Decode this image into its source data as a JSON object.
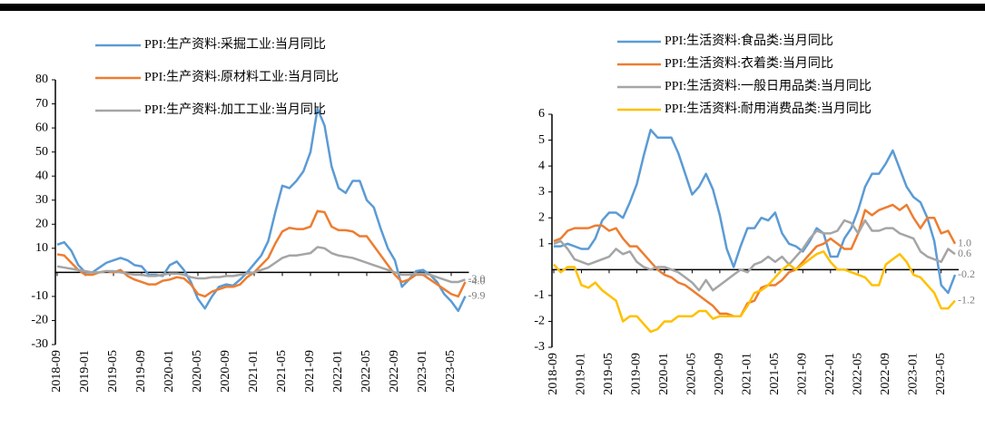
{
  "chart_data": [
    {
      "type": "line",
      "categories": [
        "2018-09",
        null,
        null,
        null,
        "2019-01",
        null,
        null,
        null,
        "2019-05",
        null,
        null,
        null,
        "2019-09",
        null,
        null,
        null,
        "2020-01",
        null,
        null,
        null,
        "2020-05",
        null,
        null,
        null,
        "2020-09",
        null,
        null,
        null,
        "2021-01",
        null,
        null,
        null,
        "2021-05",
        null,
        null,
        null,
        "2021-09",
        null,
        null,
        null,
        "2022-01",
        null,
        null,
        null,
        "2022-05",
        null,
        null,
        null,
        "2022-09",
        null,
        null,
        null,
        "2023-01",
        null,
        null,
        null,
        "2023-05",
        null,
        null
      ],
      "ylim": [
        -30,
        80
      ],
      "yticks": [
        -30,
        -20,
        -10,
        10,
        20,
        30,
        40,
        50,
        60,
        70,
        80
      ],
      "series": [
        {
          "name": "PPI:生产资料:采掘工业:当月同比",
          "color": "#5b9bd5",
          "values": [
            11.5,
            12.5,
            9,
            3,
            0,
            0,
            2,
            4,
            5,
            6,
            5,
            3,
            2.5,
            -1,
            -1,
            -1.5,
            3,
            4.5,
            1,
            -4,
            -11,
            -15,
            -10,
            -6,
            -5,
            -5.5,
            -3,
            0,
            3.5,
            7,
            13,
            25,
            36,
            35,
            38,
            42,
            50,
            68,
            61,
            44,
            35,
            33,
            38,
            38,
            30,
            27,
            18,
            10,
            5,
            -6,
            -3,
            0.5,
            1,
            -1,
            -4,
            -9,
            -12,
            -16,
            -9.9
          ],
          "value_labels": [
            null,
            null,
            null,
            null,
            null,
            null,
            null,
            null,
            null,
            null,
            null,
            null,
            null,
            null,
            null,
            null,
            null,
            null,
            null,
            null,
            null,
            null,
            null,
            null,
            null,
            null,
            null,
            null,
            null,
            null,
            null,
            null,
            null,
            null,
            null,
            null,
            null,
            null,
            null,
            null,
            null,
            null,
            null,
            null,
            null,
            null,
            null,
            null,
            null,
            null,
            null,
            null,
            null,
            null,
            null,
            null,
            null,
            null,
            "-9.9"
          ]
        },
        {
          "name": "PPI:生产资料:原材料工业:当月同比",
          "color": "#ed7d31",
          "values": [
            7.5,
            7,
            4,
            1,
            -1,
            -1,
            0,
            0.5,
            0,
            1,
            -1.5,
            -3,
            -4,
            -5,
            -5,
            -3.5,
            -3,
            -2,
            -2.5,
            -5,
            -9,
            -10,
            -8,
            -7,
            -6,
            -6,
            -5,
            -2,
            0,
            3,
            6,
            12,
            17,
            18.5,
            18,
            18,
            19,
            25.5,
            25,
            19,
            17.5,
            17.5,
            17,
            15,
            15,
            11,
            7,
            3,
            -1,
            -4,
            -3,
            -1,
            -1,
            -3,
            -5,
            -7,
            -9,
            -10,
            -4.0
          ],
          "value_labels": [
            null,
            null,
            null,
            null,
            null,
            null,
            null,
            null,
            null,
            null,
            null,
            null,
            null,
            null,
            null,
            null,
            null,
            null,
            null,
            null,
            null,
            null,
            null,
            null,
            null,
            null,
            null,
            null,
            null,
            null,
            null,
            null,
            null,
            null,
            null,
            null,
            null,
            null,
            null,
            null,
            null,
            null,
            null,
            null,
            null,
            null,
            null,
            null,
            null,
            null,
            null,
            null,
            null,
            null,
            null,
            null,
            null,
            null,
            "-4.0"
          ]
        },
        {
          "name": "PPI:生产资料:加工工业:当月同比",
          "color": "#a5a5a5",
          "values": [
            2.5,
            2,
            1.5,
            1,
            0.5,
            0,
            0,
            0.5,
            0.5,
            0,
            -0.5,
            -1,
            -1,
            -1.5,
            -1.5,
            -1,
            -0.5,
            -0.5,
            -1,
            -2,
            -2.5,
            -2.5,
            -2,
            -2,
            -1.5,
            -1.5,
            -1,
            -0.5,
            0,
            1,
            2,
            4,
            6,
            7,
            7,
            7.5,
            8,
            10.5,
            10,
            8,
            7,
            6.5,
            6,
            5,
            4,
            3,
            2,
            1,
            0,
            -1,
            -1,
            -0.5,
            -0.5,
            -1,
            -2,
            -3,
            -4,
            -4,
            -3.0
          ],
          "value_labels": [
            null,
            null,
            null,
            null,
            null,
            null,
            null,
            null,
            null,
            null,
            null,
            null,
            null,
            null,
            null,
            null,
            null,
            null,
            null,
            null,
            null,
            null,
            null,
            null,
            null,
            null,
            null,
            null,
            null,
            null,
            null,
            null,
            null,
            null,
            null,
            null,
            null,
            null,
            null,
            null,
            null,
            null,
            null,
            null,
            null,
            null,
            null,
            null,
            null,
            null,
            null,
            null,
            null,
            null,
            null,
            null,
            null,
            null,
            "-3.0"
          ]
        }
      ]
    },
    {
      "type": "line",
      "categories": [
        "2018-09",
        null,
        null,
        null,
        "2019-01",
        null,
        null,
        null,
        "2019-05",
        null,
        null,
        null,
        "2019-09",
        null,
        null,
        null,
        "2020-01",
        null,
        null,
        null,
        "2020-05",
        null,
        null,
        null,
        "2020-09",
        null,
        null,
        null,
        "2021-01",
        null,
        null,
        null,
        "2021-05",
        null,
        null,
        null,
        "2021-09",
        null,
        null,
        null,
        "2022-01",
        null,
        null,
        null,
        "2022-05",
        null,
        null,
        null,
        "2022-09",
        null,
        null,
        null,
        "2023-01",
        null,
        null,
        null,
        "2023-05",
        null,
        null
      ],
      "ylim": [
        -3,
        6
      ],
      "yticks": [
        -3,
        -2,
        -1,
        1,
        2,
        3,
        4,
        5,
        6
      ],
      "series": [
        {
          "name": "PPI:生活资料:食品类:当月同比",
          "color": "#5b9bd5",
          "values": [
            0.9,
            0.9,
            1.0,
            0.9,
            0.8,
            0.8,
            1.2,
            1.9,
            2.2,
            2.2,
            2.0,
            2.6,
            3.3,
            4.4,
            5.4,
            5.1,
            5.1,
            5.1,
            4.5,
            3.7,
            2.9,
            3.2,
            3.7,
            3.1,
            2.1,
            0.8,
            0.1,
            0.9,
            1.6,
            1.6,
            2.0,
            1.9,
            2.2,
            1.4,
            1.0,
            0.9,
            0.7,
            1.1,
            1.6,
            1.4,
            0.5,
            0.5,
            1.2,
            1.6,
            2.3,
            3.2,
            3.7,
            3.7,
            4.1,
            4.6,
            3.9,
            3.2,
            2.8,
            2.6,
            2.0,
            1.1,
            -0.6,
            -0.9,
            -0.2
          ],
          "value_labels": [
            null,
            null,
            null,
            null,
            null,
            null,
            null,
            null,
            null,
            null,
            null,
            null,
            null,
            null,
            null,
            null,
            null,
            null,
            null,
            null,
            null,
            null,
            null,
            null,
            null,
            null,
            null,
            null,
            null,
            null,
            null,
            null,
            null,
            null,
            null,
            null,
            null,
            null,
            null,
            null,
            null,
            null,
            null,
            null,
            null,
            null,
            null,
            null,
            null,
            null,
            null,
            null,
            null,
            null,
            null,
            null,
            null,
            null,
            "-0.2"
          ]
        },
        {
          "name": "PPI:生活资料:衣着类:当月同比",
          "color": "#ed7d31",
          "values": [
            1.1,
            1.2,
            1.5,
            1.6,
            1.6,
            1.6,
            1.7,
            1.7,
            1.5,
            1.6,
            1.2,
            0.9,
            0.9,
            0.6,
            0.3,
            0,
            -0.2,
            -0.3,
            -0.5,
            -0.6,
            -0.8,
            -1.0,
            -1.2,
            -1.4,
            -1.7,
            -1.7,
            -1.8,
            -1.8,
            -1.3,
            -1.2,
            -0.7,
            -0.6,
            -0.6,
            -0.4,
            -0.1,
            0,
            0.3,
            0.6,
            0.9,
            1.0,
            1.2,
            1.0,
            0.8,
            0.8,
            1.4,
            2.3,
            2.1,
            2.3,
            2.4,
            2.5,
            2.3,
            2.5,
            2.0,
            1.6,
            2.0,
            2.0,
            1.4,
            1.5,
            1.0
          ],
          "value_labels": [
            null,
            null,
            null,
            null,
            null,
            null,
            null,
            null,
            null,
            null,
            null,
            null,
            null,
            null,
            null,
            null,
            null,
            null,
            null,
            null,
            null,
            null,
            null,
            null,
            null,
            null,
            null,
            null,
            null,
            null,
            null,
            null,
            null,
            null,
            null,
            null,
            null,
            null,
            null,
            null,
            null,
            null,
            null,
            null,
            null,
            null,
            null,
            null,
            null,
            null,
            null,
            null,
            null,
            null,
            null,
            null,
            null,
            null,
            "1.0"
          ]
        },
        {
          "name": "PPI:生活资料:一般日用品类:当月同比",
          "color": "#a5a5a5",
          "values": [
            1.0,
            1.1,
            0.8,
            0.4,
            0.3,
            0.2,
            0.3,
            0.4,
            0.5,
            0.8,
            0.6,
            0.7,
            0.3,
            0.1,
            0,
            0.1,
            0.1,
            0,
            -0.1,
            -0.3,
            -0.5,
            -0.8,
            -0.4,
            -0.8,
            -0.6,
            -0.4,
            -0.2,
            0,
            -0.1,
            0.2,
            0.3,
            0.5,
            0.3,
            0.5,
            0.2,
            0.5,
            0.8,
            1.2,
            1.5,
            1.4,
            1.4,
            1.5,
            1.9,
            1.8,
            1.4,
            1.9,
            1.5,
            1.5,
            1.6,
            1.6,
            1.4,
            1.3,
            1.2,
            0.7,
            0.5,
            0.4,
            0.3,
            0.8,
            0.6
          ],
          "value_labels": [
            null,
            null,
            null,
            null,
            null,
            null,
            null,
            null,
            null,
            null,
            null,
            null,
            null,
            null,
            null,
            null,
            null,
            null,
            null,
            null,
            null,
            null,
            null,
            null,
            null,
            null,
            null,
            null,
            null,
            null,
            null,
            null,
            null,
            null,
            null,
            null,
            null,
            null,
            null,
            null,
            null,
            null,
            null,
            null,
            null,
            null,
            null,
            null,
            null,
            null,
            null,
            null,
            null,
            null,
            null,
            null,
            null,
            null,
            "0.6"
          ]
        },
        {
          "name": "PPI:生活资料:耐用消费品类:当月同比",
          "color": "#ffc000",
          "values": [
            0.2,
            -0.1,
            0.1,
            0.1,
            -0.6,
            -0.7,
            -0.5,
            -0.8,
            -1.0,
            -1.2,
            -2.0,
            -1.8,
            -1.8,
            -2.1,
            -2.4,
            -2.3,
            -2.0,
            -2.0,
            -1.8,
            -1.8,
            -1.8,
            -1.6,
            -1.6,
            -1.9,
            -1.8,
            -1.8,
            -1.8,
            -1.8,
            -1.4,
            -0.9,
            -0.8,
            -0.6,
            -0.3,
            0,
            0.2,
            0,
            0.2,
            0.4,
            0.6,
            0.7,
            0.3,
            0,
            0,
            -0.1,
            -0.2,
            -0.3,
            -0.6,
            -0.6,
            0.2,
            0.4,
            0.6,
            0.3,
            -0.2,
            -0.3,
            -0.6,
            -0.9,
            -1.5,
            -1.5,
            -1.2
          ],
          "value_labels": [
            null,
            null,
            null,
            null,
            null,
            null,
            null,
            null,
            null,
            null,
            null,
            null,
            null,
            null,
            null,
            null,
            null,
            null,
            null,
            null,
            null,
            null,
            null,
            null,
            null,
            null,
            null,
            null,
            null,
            null,
            null,
            null,
            null,
            null,
            null,
            null,
            null,
            null,
            null,
            null,
            null,
            null,
            null,
            null,
            null,
            null,
            null,
            null,
            null,
            null,
            null,
            null,
            null,
            null,
            null,
            null,
            null,
            null,
            "-1.2"
          ]
        }
      ]
    }
  ]
}
